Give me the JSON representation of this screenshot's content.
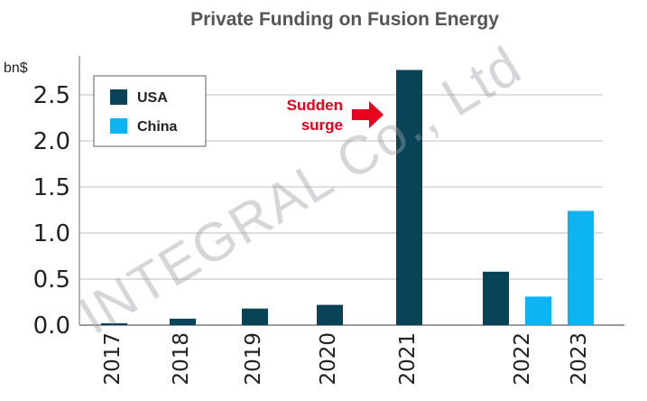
{
  "chart_data": {
    "type": "bar",
    "title": "Private Funding on Fusion Energy",
    "ylabel": "bn$",
    "ylim": [
      0,
      2.9
    ],
    "yticks": [
      "0.0",
      "0.5",
      "1.0",
      "1.5",
      "2.0",
      "2.5"
    ],
    "grid": true,
    "legend_position": "top-left",
    "categories": [
      "2017",
      "2018",
      "2019",
      "2020",
      "2021",
      "2022",
      "2023"
    ],
    "series": [
      {
        "name": "USA",
        "color": "#084357",
        "values": [
          0.02,
          0.07,
          0.18,
          0.22,
          2.77,
          0.58,
          null
        ]
      },
      {
        "name": "China",
        "color": "#0db4f4",
        "values": [
          null,
          null,
          null,
          null,
          null,
          0.31,
          1.24
        ]
      }
    ],
    "annotation": {
      "lines": [
        "Sudden",
        "surge"
      ],
      "color": "#e8001c",
      "points_to": "2021"
    }
  },
  "watermark": "INTEGRAL Co., Ltd"
}
